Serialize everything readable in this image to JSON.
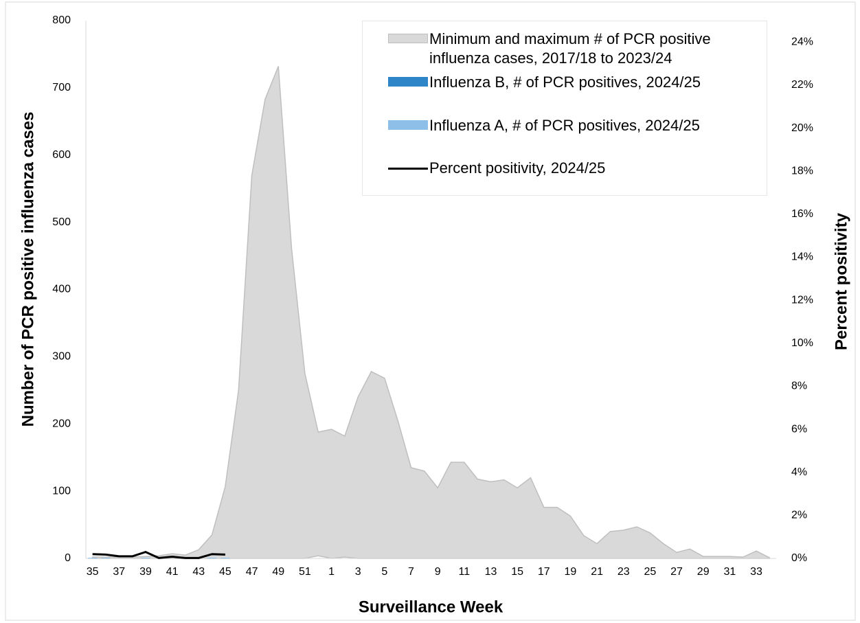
{
  "chart_data": {
    "type": "area-range-bar-line",
    "xlabel": "Surveillance Week",
    "ylabel": "Number of PCR positive influenza cases",
    "y2label": "Percent positivity",
    "categories": [
      "35",
      null,
      "37",
      null,
      "39",
      null,
      "41",
      null,
      "43",
      null,
      "45",
      null,
      "47",
      null,
      "49",
      null,
      "51",
      null,
      "1",
      null,
      "3",
      null,
      "5",
      null,
      "7",
      null,
      "9",
      null,
      "11",
      null,
      "13",
      null,
      "15",
      null,
      "17",
      null,
      "19",
      null,
      "21",
      null,
      "23",
      null,
      "25",
      null,
      "27",
      null,
      "29",
      null,
      "31",
      null,
      "33",
      null
    ],
    "ylim": [
      0,
      800
    ],
    "yticks": [
      0,
      100,
      200,
      300,
      400,
      500,
      600,
      700,
      800
    ],
    "y2lim": [
      0,
      25
    ],
    "y2ticks": [
      {
        "value": 0,
        "label": "0%"
      },
      {
        "value": 2,
        "label": "2%"
      },
      {
        "value": 4,
        "label": "4%"
      },
      {
        "value": 6,
        "label": "6%"
      },
      {
        "value": 8,
        "label": "8%"
      },
      {
        "value": 10,
        "label": "10%"
      },
      {
        "value": 12,
        "label": "12%"
      },
      {
        "value": 14,
        "label": "14%"
      },
      {
        "value": 16,
        "label": "16%"
      },
      {
        "value": 18,
        "label": "18%"
      },
      {
        "value": 20,
        "label": "20%"
      },
      {
        "value": 22,
        "label": "22%"
      },
      {
        "value": 24,
        "label": "24%"
      }
    ],
    "series": [
      {
        "name": "Minimum and maximum # of PCR positive influenza cases, 2017/18 to 2023/24",
        "type": "range",
        "color": "#d9d9d9",
        "low": [
          0,
          0,
          0,
          0,
          0,
          0,
          0,
          0,
          0,
          0,
          0,
          0,
          0,
          0,
          0,
          0,
          0,
          4,
          0,
          2,
          0,
          0,
          0,
          0,
          0,
          0,
          0,
          0,
          0,
          0,
          0,
          0,
          0,
          0,
          0,
          0,
          0,
          0,
          0,
          0,
          0,
          0,
          0,
          0,
          0,
          0,
          0,
          0,
          0,
          0,
          0,
          0
        ],
        "high": [
          2,
          2,
          2,
          2,
          3,
          4,
          7,
          5,
          13,
          35,
          107,
          250,
          570,
          683,
          732,
          460,
          275,
          188,
          192,
          182,
          240,
          278,
          268,
          205,
          135,
          130,
          105,
          143,
          143,
          118,
          114,
          117,
          105,
          120,
          76,
          76,
          63,
          34,
          22,
          40,
          42,
          47,
          38,
          22,
          9,
          14,
          3,
          3,
          3,
          2,
          11,
          1
        ]
      },
      {
        "name": "Influenza B, # of PCR positives, 2024/25",
        "type": "bar",
        "color": "#2e86c8",
        "values": [
          0,
          0,
          0,
          0,
          0,
          0,
          0,
          0,
          0,
          0,
          0,
          null,
          null,
          null,
          null,
          null,
          null,
          null,
          null,
          null,
          null,
          null,
          null,
          null,
          null,
          null,
          null,
          null,
          null,
          null,
          null,
          null,
          null,
          null,
          null,
          null,
          null,
          null,
          null,
          null,
          null,
          null,
          null,
          null,
          null,
          null,
          null,
          null,
          null,
          null,
          null,
          null
        ]
      },
      {
        "name": "Influenza A, # of PCR positives, 2024/25",
        "type": "bar",
        "color": "#8dbfe8",
        "values": [
          1,
          1,
          0,
          0,
          1,
          0,
          0,
          0,
          0,
          1,
          1,
          null,
          null,
          null,
          null,
          null,
          null,
          null,
          null,
          null,
          null,
          null,
          null,
          null,
          null,
          null,
          null,
          null,
          null,
          null,
          null,
          null,
          null,
          null,
          null,
          null,
          null,
          null,
          null,
          null,
          null,
          null,
          null,
          null,
          null,
          null,
          null,
          null,
          null,
          null,
          null,
          null
        ]
      },
      {
        "name": "Percent positivity, 2024/25",
        "type": "line",
        "axis": "y2",
        "color": "#000000",
        "values": [
          0.2,
          0.18,
          0.1,
          0.1,
          0.3,
          0.02,
          0.08,
          0.02,
          0.02,
          0.2,
          0.18,
          null,
          null,
          null,
          null,
          null,
          null,
          null,
          null,
          null,
          null,
          null,
          null,
          null,
          null,
          null,
          null,
          null,
          null,
          null,
          null,
          null,
          null,
          null,
          null,
          null,
          null,
          null,
          null,
          null,
          null,
          null,
          null,
          null,
          null,
          null,
          null,
          null,
          null,
          null,
          null,
          null
        ]
      }
    ]
  }
}
